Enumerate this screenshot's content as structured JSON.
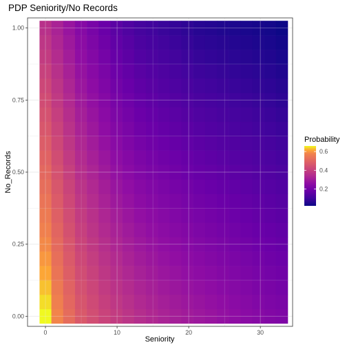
{
  "chart_data": {
    "type": "heatmap",
    "title": "PDP Seniority/No Records",
    "xlabel": "Seniority",
    "ylabel": "No_Records",
    "x_ticks": [
      0,
      10,
      20,
      30
    ],
    "y_ticks": [
      "0.00",
      "0.25",
      "0.50",
      "0.75",
      "1.00"
    ],
    "xlim": [
      -2.5,
      34.5
    ],
    "ylim": [
      -0.035,
      1.035
    ],
    "grid": true,
    "theme": "bw",
    "legend": {
      "title": "Probability",
      "position": "right",
      "ticks": [
        "0.2",
        "0.4",
        "0.6"
      ],
      "range": [
        0.02,
        0.66
      ]
    },
    "colorscale": "plasma",
    "seniority_values": [
      0,
      1.65,
      3.3,
      4.95,
      6.6,
      8.25,
      9.9,
      11.55,
      13.2,
      14.85,
      16.5,
      18.15,
      19.8,
      21.45,
      23.1,
      24.75,
      26.4,
      28.05,
      29.7,
      31.35,
      33
    ],
    "no_records_values": [
      0,
      0.05,
      0.1,
      0.15,
      0.2,
      0.25,
      0.3,
      0.35,
      0.4,
      0.45,
      0.5,
      0.55,
      0.6,
      0.65,
      0.7,
      0.75,
      0.8,
      0.85,
      0.9,
      0.95,
      1
    ],
    "probability_at_seniority_base": [
      0.66,
      0.58,
      0.52,
      0.47,
      0.44,
      0.41,
      0.39,
      0.37,
      0.35,
      0.335,
      0.32,
      0.31,
      0.3,
      0.29,
      0.28,
      0.27,
      0.26,
      0.25,
      0.24,
      0.232,
      0.225
    ],
    "probability_at_seniority_top": [
      0.36,
      0.32,
      0.28,
      0.24,
      0.21,
      0.18,
      0.15,
      0.13,
      0.11,
      0.1,
      0.09,
      0.08,
      0.07,
      0.06,
      0.055,
      0.05,
      0.045,
      0.04,
      0.035,
      0.03,
      0.02
    ]
  }
}
